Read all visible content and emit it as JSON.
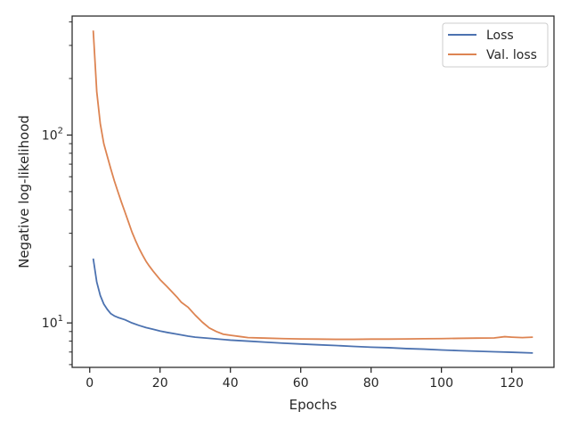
{
  "chart_data": {
    "type": "line",
    "xlabel": "Epochs",
    "ylabel": "Negative log-likelihood",
    "yscale": "log",
    "xlim": [
      -5,
      132
    ],
    "ylim": [
      5.8,
      430
    ],
    "grid": false,
    "legend": {
      "placement": "top-right"
    },
    "x_ticks": [
      0,
      20,
      40,
      60,
      80,
      100,
      120
    ],
    "x_tick_labels": [
      "0",
      "20",
      "40",
      "60",
      "80",
      "100",
      "120"
    ],
    "y_major_ticks": [
      10,
      100
    ],
    "y_tick_labels": [
      {
        "base": "10",
        "exp": "1"
      },
      {
        "base": "10",
        "exp": "2"
      }
    ],
    "y_minor_ticks": [
      6,
      7,
      8,
      9,
      20,
      30,
      40,
      50,
      60,
      70,
      80,
      90,
      200,
      300,
      400
    ],
    "series": [
      {
        "name": "Loss",
        "color": "#4c72b0",
        "points": [
          [
            1,
            22
          ],
          [
            2,
            16.5
          ],
          [
            3,
            14
          ],
          [
            4,
            12.6
          ],
          [
            5,
            11.8
          ],
          [
            6,
            11.2
          ],
          [
            7,
            10.9
          ],
          [
            8,
            10.7
          ],
          [
            10,
            10.4
          ],
          [
            12,
            10.0
          ],
          [
            14,
            9.7
          ],
          [
            16,
            9.45
          ],
          [
            18,
            9.25
          ],
          [
            20,
            9.05
          ],
          [
            22,
            8.9
          ],
          [
            25,
            8.7
          ],
          [
            28,
            8.5
          ],
          [
            30,
            8.4
          ],
          [
            35,
            8.25
          ],
          [
            40,
            8.1
          ],
          [
            45,
            8.0
          ],
          [
            50,
            7.9
          ],
          [
            55,
            7.8
          ],
          [
            60,
            7.72
          ],
          [
            65,
            7.65
          ],
          [
            70,
            7.58
          ],
          [
            75,
            7.5
          ],
          [
            80,
            7.43
          ],
          [
            85,
            7.38
          ],
          [
            90,
            7.3
          ],
          [
            95,
            7.25
          ],
          [
            100,
            7.18
          ],
          [
            105,
            7.12
          ],
          [
            110,
            7.07
          ],
          [
            115,
            7.02
          ],
          [
            120,
            6.98
          ],
          [
            126,
            6.92
          ]
        ]
      },
      {
        "name": "Val. loss",
        "color": "#dd8452",
        "points": [
          [
            1,
            360
          ],
          [
            2,
            170
          ],
          [
            3,
            115
          ],
          [
            4,
            90
          ],
          [
            5,
            77
          ],
          [
            6,
            66
          ],
          [
            7,
            57
          ],
          [
            8,
            50
          ],
          [
            9,
            44
          ],
          [
            10,
            39
          ],
          [
            11,
            34.5
          ],
          [
            12,
            30.5
          ],
          [
            13,
            27.5
          ],
          [
            14,
            25
          ],
          [
            15,
            23
          ],
          [
            16,
            21.3
          ],
          [
            17,
            20
          ],
          [
            18,
            18.9
          ],
          [
            20,
            17
          ],
          [
            22,
            15.6
          ],
          [
            25,
            13.6
          ],
          [
            26,
            12.9
          ],
          [
            28,
            12.1
          ],
          [
            30,
            11
          ],
          [
            32,
            10.1
          ],
          [
            34,
            9.4
          ],
          [
            36,
            9.0
          ],
          [
            38,
            8.7
          ],
          [
            40,
            8.6
          ],
          [
            43,
            8.45
          ],
          [
            45,
            8.35
          ],
          [
            50,
            8.3
          ],
          [
            55,
            8.25
          ],
          [
            60,
            8.22
          ],
          [
            65,
            8.2
          ],
          [
            70,
            8.18
          ],
          [
            75,
            8.18
          ],
          [
            80,
            8.2
          ],
          [
            85,
            8.2
          ],
          [
            90,
            8.22
          ],
          [
            95,
            8.24
          ],
          [
            100,
            8.25
          ],
          [
            105,
            8.28
          ],
          [
            110,
            8.3
          ],
          [
            115,
            8.32
          ],
          [
            118,
            8.45
          ],
          [
            120,
            8.4
          ],
          [
            123,
            8.35
          ],
          [
            126,
            8.4
          ]
        ]
      }
    ]
  }
}
